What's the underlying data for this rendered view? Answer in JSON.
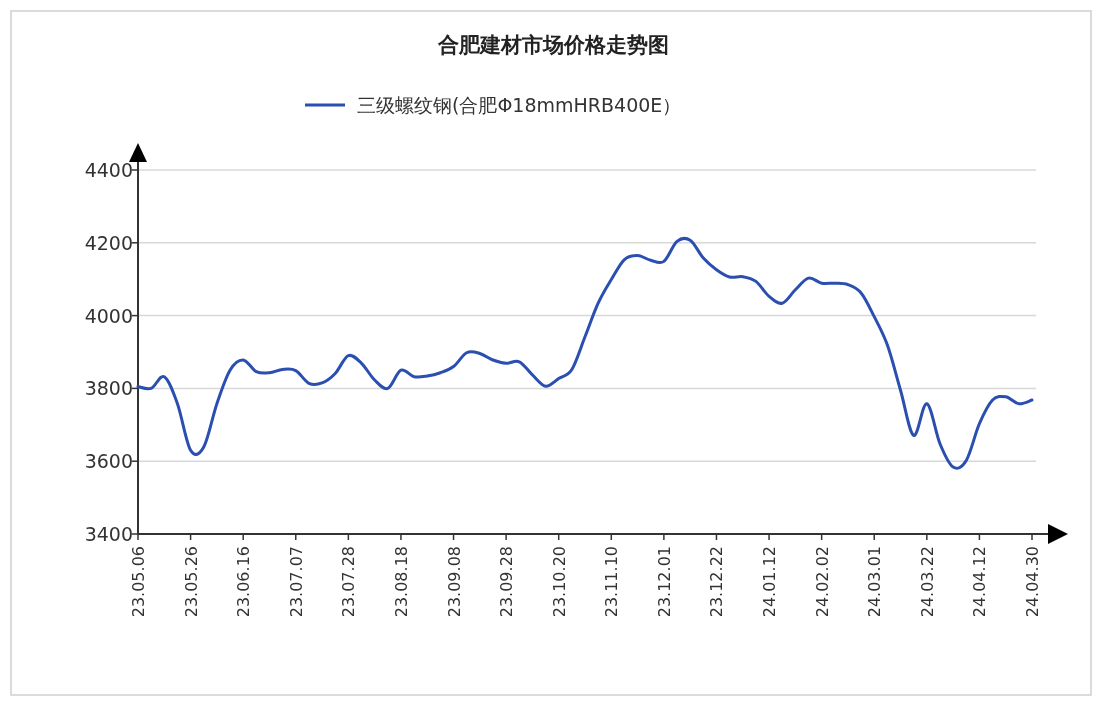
{
  "chart_data": {
    "type": "line",
    "title": "合肥建材市场价格走势图",
    "categories": [
      "23.05.06",
      null,
      null,
      null,
      "23.05.26",
      null,
      null,
      null,
      "23.06.16",
      null,
      null,
      null,
      "23.07.07",
      null,
      null,
      null,
      "23.07.28",
      null,
      null,
      null,
      "23.08.18",
      null,
      null,
      null,
      "23.09.08",
      null,
      null,
      null,
      "23.09.28",
      null,
      null,
      null,
      "23.10.20",
      null,
      null,
      null,
      "23.11.10",
      null,
      null,
      null,
      "23.12.01",
      null,
      null,
      null,
      "23.12.22",
      null,
      null,
      null,
      "24.01.12",
      null,
      null,
      null,
      "24.02.02",
      null,
      null,
      null,
      "24.03.01",
      null,
      null,
      null,
      "24.03.22",
      null,
      null,
      null,
      "24.04.12",
      null,
      null,
      null,
      "24.04.30"
    ],
    "series": [
      {
        "name": "三级螺纹钢(合肥Φ18mmHRB400E）",
        "color": "#2a4fb0",
        "values": [
          3805,
          3800,
          3832,
          3758,
          3630,
          3639,
          3758,
          3850,
          3878,
          3846,
          3843,
          3852,
          3849,
          3814,
          3815,
          3841,
          3890,
          3869,
          3823,
          3800,
          3850,
          3832,
          3834,
          3843,
          3860,
          3898,
          3896,
          3878,
          3869,
          3873,
          3837,
          3806,
          3827,
          3852,
          3942,
          4034,
          4099,
          4154,
          4165,
          4152,
          4149,
          4204,
          4207,
          4158,
          4126,
          4106,
          4107,
          4094,
          4053,
          4034,
          4071,
          4103,
          4089,
          4089,
          4085,
          4062,
          3997,
          3919,
          3795,
          3671,
          3758,
          3648,
          3584,
          3602,
          3703,
          3768,
          3777,
          3758,
          3768
        ]
      }
    ],
    "ylim": [
      3400,
      4400
    ],
    "yticks": [
      3400,
      3600,
      3800,
      4000,
      4200,
      4400
    ],
    "grid": "y",
    "legend": "top",
    "marker": "none",
    "line_style": "solid"
  }
}
